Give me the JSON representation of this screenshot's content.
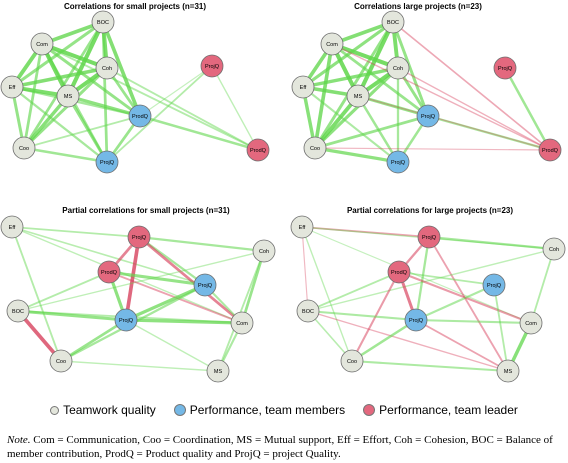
{
  "legend": {
    "items": [
      {
        "label": "Teamwork quality",
        "color": "#e3e6dc",
        "size": "small"
      },
      {
        "label": "Performance, team members",
        "color": "#74b8e6",
        "size": "large"
      },
      {
        "label": "Performance, team leader",
        "color": "#e3687e",
        "size": "large"
      }
    ]
  },
  "note": {
    "prefix": "Note.",
    "text": "Com = Communication, Coo = Coordination, MS = Mutual support, Eff = Effort, Coh = Cohesion, BOC = Balance of member contribution, ProdQ = Product quality and ProjQ = project Quality."
  },
  "colors": {
    "positive": "#5fd64a",
    "negative": "#d63a57",
    "teamwork": "#e3e6dc",
    "members": "#74b8e6",
    "leader": "#e3687e"
  },
  "panels": [
    {
      "title": "Correlations for small projects (n=31)",
      "nodes": [
        {
          "label": "BOC",
          "group": "teamwork"
        },
        {
          "label": "Com",
          "group": "teamwork"
        },
        {
          "label": "Coh",
          "group": "teamwork"
        },
        {
          "label": "Eff",
          "group": "teamwork"
        },
        {
          "label": "MS",
          "group": "teamwork"
        },
        {
          "label": "Coo",
          "group": "teamwork"
        },
        {
          "label": "ProdQ",
          "group": "members"
        },
        {
          "label": "ProjQ",
          "group": "members"
        },
        {
          "label": "ProjQ",
          "group": "leader"
        },
        {
          "label": "ProdQ",
          "group": "leader"
        }
      ],
      "edges": [
        [
          0,
          1,
          0.7,
          "pos"
        ],
        [
          0,
          2,
          0.75,
          "pos"
        ],
        [
          0,
          3,
          0.55,
          "pos"
        ],
        [
          0,
          4,
          0.8,
          "pos"
        ],
        [
          0,
          5,
          0.5,
          "pos"
        ],
        [
          0,
          6,
          0.7,
          "pos"
        ],
        [
          0,
          7,
          0.5,
          "pos"
        ],
        [
          1,
          2,
          0.8,
          "pos"
        ],
        [
          1,
          3,
          0.75,
          "pos"
        ],
        [
          1,
          4,
          0.8,
          "pos"
        ],
        [
          1,
          5,
          0.5,
          "pos"
        ],
        [
          1,
          6,
          0.55,
          "pos"
        ],
        [
          1,
          7,
          0.45,
          "pos"
        ],
        [
          2,
          3,
          0.7,
          "pos"
        ],
        [
          2,
          4,
          0.8,
          "pos"
        ],
        [
          2,
          5,
          0.55,
          "pos"
        ],
        [
          2,
          6,
          0.5,
          "pos"
        ],
        [
          2,
          9,
          0.3,
          "pos"
        ],
        [
          3,
          4,
          0.75,
          "pos"
        ],
        [
          3,
          5,
          0.55,
          "pos"
        ],
        [
          3,
          6,
          0.4,
          "pos"
        ],
        [
          3,
          7,
          0.4,
          "pos"
        ],
        [
          4,
          5,
          0.65,
          "pos"
        ],
        [
          4,
          6,
          0.6,
          "pos"
        ],
        [
          4,
          7,
          0.55,
          "pos"
        ],
        [
          5,
          7,
          0.45,
          "pos"
        ],
        [
          5,
          6,
          0.3,
          "pos"
        ],
        [
          6,
          9,
          0.45,
          "pos"
        ],
        [
          6,
          7,
          0.5,
          "pos"
        ],
        [
          6,
          8,
          0.15,
          "pos"
        ],
        [
          7,
          8,
          0.3,
          "pos"
        ],
        [
          9,
          8,
          0.2,
          "pos"
        ],
        [
          1,
          9,
          0.3,
          "pos"
        ]
      ]
    },
    {
      "title": "Correlations large projects (n=23)",
      "nodes": [
        {
          "label": "BOC",
          "group": "teamwork"
        },
        {
          "label": "Com",
          "group": "teamwork"
        },
        {
          "label": "Coh",
          "group": "teamwork"
        },
        {
          "label": "Eff",
          "group": "teamwork"
        },
        {
          "label": "MS",
          "group": "teamwork"
        },
        {
          "label": "Coo",
          "group": "teamwork"
        },
        {
          "label": "ProjQ",
          "group": "members"
        },
        {
          "label": "ProjQ",
          "group": "members"
        },
        {
          "label": "ProjQ",
          "group": "leader"
        },
        {
          "label": "ProdQ",
          "group": "leader"
        }
      ],
      "edges": [
        [
          0,
          1,
          0.7,
          "pos"
        ],
        [
          0,
          2,
          0.75,
          "pos"
        ],
        [
          0,
          3,
          0.6,
          "pos"
        ],
        [
          0,
          4,
          0.8,
          "pos"
        ],
        [
          0,
          5,
          0.55,
          "pos"
        ],
        [
          0,
          6,
          0.55,
          "pos"
        ],
        [
          1,
          2,
          0.8,
          "pos"
        ],
        [
          1,
          3,
          0.7,
          "pos"
        ],
        [
          1,
          4,
          0.8,
          "pos"
        ],
        [
          1,
          5,
          0.7,
          "pos"
        ],
        [
          1,
          6,
          0.5,
          "pos"
        ],
        [
          2,
          3,
          0.65,
          "pos"
        ],
        [
          2,
          4,
          0.8,
          "pos"
        ],
        [
          2,
          5,
          0.6,
          "pos"
        ],
        [
          2,
          6,
          0.55,
          "pos"
        ],
        [
          2,
          7,
          0.4,
          "pos"
        ],
        [
          3,
          4,
          0.7,
          "pos"
        ],
        [
          3,
          5,
          0.65,
          "pos"
        ],
        [
          3,
          7,
          0.35,
          "pos"
        ],
        [
          4,
          5,
          0.75,
          "pos"
        ],
        [
          4,
          6,
          0.55,
          "pos"
        ],
        [
          4,
          7,
          0.45,
          "pos"
        ],
        [
          5,
          6,
          0.5,
          "pos"
        ],
        [
          5,
          7,
          0.6,
          "pos"
        ],
        [
          6,
          7,
          0.45,
          "pos"
        ],
        [
          6,
          9,
          0.4,
          "pos"
        ],
        [
          9,
          8,
          0.45,
          "pos"
        ],
        [
          0,
          9,
          0.25,
          "neg"
        ],
        [
          1,
          9,
          0.2,
          "neg"
        ],
        [
          2,
          9,
          0.2,
          "neg"
        ],
        [
          5,
          9,
          0.15,
          "neg"
        ],
        [
          4,
          9,
          0.15,
          "neg"
        ]
      ]
    },
    {
      "title": "Partial correlations for small projects (n=31)",
      "nodes": [
        {
          "label": "Eff",
          "group": "teamwork"
        },
        {
          "label": "ProjQ",
          "group": "leader"
        },
        {
          "label": "Coh",
          "group": "teamwork"
        },
        {
          "label": "ProdQ",
          "group": "leader"
        },
        {
          "label": "ProjQ",
          "group": "members"
        },
        {
          "label": "BOC",
          "group": "teamwork"
        },
        {
          "label": "ProjQ",
          "group": "members"
        },
        {
          "label": "Com",
          "group": "teamwork"
        },
        {
          "label": "Coo",
          "group": "teamwork"
        },
        {
          "label": "MS",
          "group": "teamwork"
        }
      ],
      "edges": [
        [
          0,
          1,
          0.3,
          "pos"
        ],
        [
          0,
          4,
          0.25,
          "pos"
        ],
        [
          0,
          8,
          0.3,
          "pos"
        ],
        [
          0,
          7,
          0.2,
          "pos"
        ],
        [
          1,
          2,
          0.4,
          "pos"
        ],
        [
          1,
          3,
          0.5,
          "neg"
        ],
        [
          1,
          6,
          0.7,
          "neg"
        ],
        [
          1,
          4,
          0.4,
          "pos"
        ],
        [
          1,
          7,
          0.5,
          "neg"
        ],
        [
          2,
          7,
          0.5,
          "pos"
        ],
        [
          2,
          9,
          0.3,
          "pos"
        ],
        [
          2,
          5,
          0.2,
          "pos"
        ],
        [
          3,
          4,
          0.55,
          "pos"
        ],
        [
          3,
          6,
          0.6,
          "pos"
        ],
        [
          3,
          7,
          0.3,
          "neg"
        ],
        [
          3,
          5,
          0.3,
          "pos"
        ],
        [
          4,
          6,
          0.6,
          "pos"
        ],
        [
          4,
          7,
          0.35,
          "pos"
        ],
        [
          5,
          8,
          0.7,
          "neg"
        ],
        [
          5,
          6,
          0.55,
          "pos"
        ],
        [
          5,
          7,
          0.3,
          "pos"
        ],
        [
          6,
          8,
          0.5,
          "pos"
        ],
        [
          6,
          7,
          0.6,
          "pos"
        ],
        [
          6,
          9,
          0.2,
          "pos"
        ],
        [
          7,
          9,
          0.35,
          "pos"
        ],
        [
          8,
          9,
          0.2,
          "pos"
        ],
        [
          8,
          4,
          0.4,
          "pos"
        ]
      ]
    },
    {
      "title": "Partial correlations for large projects (n=23)",
      "nodes": [
        {
          "label": "Eff",
          "group": "teamwork"
        },
        {
          "label": "ProjQ",
          "group": "leader"
        },
        {
          "label": "Coh",
          "group": "teamwork"
        },
        {
          "label": "ProdQ",
          "group": "leader"
        },
        {
          "label": "ProjQ",
          "group": "members"
        },
        {
          "label": "BOC",
          "group": "teamwork"
        },
        {
          "label": "ProjQ",
          "group": "members"
        },
        {
          "label": "Com",
          "group": "teamwork"
        },
        {
          "label": "Coo",
          "group": "teamwork"
        },
        {
          "label": "MS",
          "group": "teamwork"
        }
      ],
      "edges": [
        [
          0,
          1,
          0.3,
          "neg"
        ],
        [
          0,
          2,
          0.2,
          "pos"
        ],
        [
          0,
          8,
          0.2,
          "pos"
        ],
        [
          0,
          7,
          0.15,
          "pos"
        ],
        [
          1,
          2,
          0.4,
          "pos"
        ],
        [
          1,
          3,
          0.4,
          "neg"
        ],
        [
          1,
          6,
          0.4,
          "pos"
        ],
        [
          1,
          9,
          0.3,
          "neg"
        ],
        [
          2,
          5,
          0.2,
          "pos"
        ],
        [
          2,
          7,
          0.3,
          "pos"
        ],
        [
          3,
          6,
          0.55,
          "neg"
        ],
        [
          3,
          5,
          0.3,
          "pos"
        ],
        [
          3,
          8,
          0.35,
          "neg"
        ],
        [
          3,
          7,
          0.35,
          "neg"
        ],
        [
          3,
          4,
          0.3,
          "pos"
        ],
        [
          4,
          6,
          0.35,
          "pos"
        ],
        [
          4,
          9,
          0.3,
          "pos"
        ],
        [
          5,
          8,
          0.25,
          "pos"
        ],
        [
          5,
          6,
          0.35,
          "pos"
        ],
        [
          5,
          9,
          0.2,
          "neg"
        ],
        [
          6,
          7,
          0.35,
          "pos"
        ],
        [
          6,
          8,
          0.45,
          "pos"
        ],
        [
          6,
          9,
          0.3,
          "neg"
        ],
        [
          7,
          9,
          0.65,
          "pos"
        ],
        [
          8,
          9,
          0.35,
          "pos"
        ],
        [
          0,
          5,
          0.15,
          "neg"
        ]
      ]
    }
  ]
}
